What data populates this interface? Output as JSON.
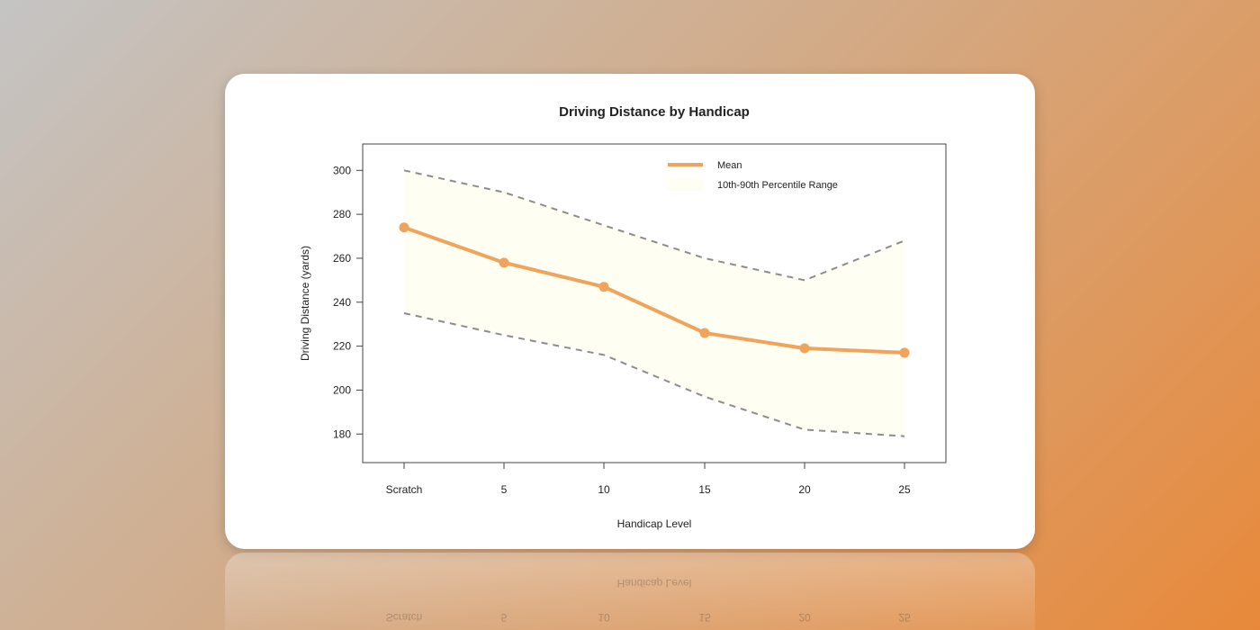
{
  "chart_data": {
    "type": "line",
    "title": "Driving Distance by Handicap",
    "xlabel": "Handicap Level",
    "ylabel": "Driving Distance (yards)",
    "categories": [
      "Scratch",
      "5",
      "10",
      "15",
      "20",
      "25"
    ],
    "ylim": [
      167,
      312
    ],
    "yticks": [
      180,
      200,
      220,
      240,
      260,
      280,
      300
    ],
    "series": [
      {
        "name": "Mean",
        "values": [
          274,
          258,
          247,
          226,
          219,
          217
        ],
        "color": "#f0a35a"
      }
    ],
    "band": {
      "name": "10th-90th Percentile Range",
      "lower": [
        235,
        225,
        216,
        197,
        182,
        179
      ],
      "upper": [
        300,
        290,
        275,
        260,
        250,
        268
      ],
      "fill": "#fffef3",
      "edge_color": "#8c8c8c"
    },
    "legend_position": "top-right",
    "grid": false
  }
}
